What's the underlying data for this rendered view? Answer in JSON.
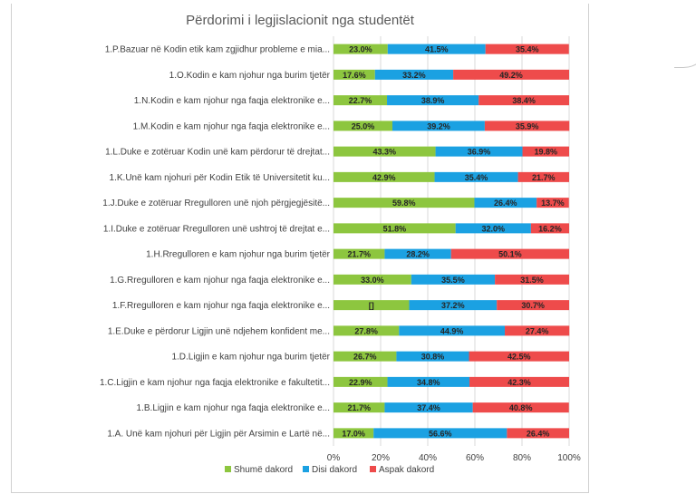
{
  "colors": {
    "shume": "#8dc63f",
    "disi": "#1ba1e2",
    "aspak": "#ee4b4b",
    "grid": "#d9d9d9"
  },
  "chart_data": {
    "type": "bar",
    "orientation": "horizontal",
    "stacked": true,
    "title": "Përdorimi i legjislacionit nga studentët",
    "xlim": [
      0,
      100
    ],
    "x_ticks": [
      "0%",
      "20%",
      "40%",
      "60%",
      "80%",
      "100%"
    ],
    "grid": true,
    "legend_position": "bottom",
    "categories": [
      "1.P.Bazuar në Kodin etik kam zgjidhur probleme e mia...",
      "1.O.Kodin e kam njohur nga burim tjetër",
      "1.N.Kodin e kam njohur nga faqja elektronike e...",
      "1.M.Kodin e kam njohur nga faqja elektronike e...",
      "1.L.Duke e zotëruar Kodin  unë kam përdorur të drejtat...",
      "1.K.Unë kam njohuri për Kodin Etik të Universitetit ku...",
      "1.J.Duke e zotëruar Rregulloren unë njoh përgjegjësitë...",
      "1.I.Duke e zotëruar Rregulloren unë ushtroj të drejtat e...",
      "1.H.Rregulloren e kam njohur nga burim tjetër",
      "1.G.Rregulloren e kam njohur nga faqja elektronike e...",
      "1.F.Rregulloren e kam njohur nga faqja elektronike e...",
      "1.E.Duke e përdorur Ligjin unë ndjehem konfident me...",
      "1.D.Ligjin e kam njohur nga burim tjetër",
      "1.C.Ligjin e kam njohur nga faqja elektronike e fakultetit...",
      "1.B.Ligjin e kam njohur nga faqja elektronike e...",
      "1.A. Unë kam njohuri për Ligjin për Arsimin e Lartë në..."
    ],
    "series": [
      {
        "name": "Shumë dakord",
        "values": [
          23.0,
          17.6,
          22.7,
          25.0,
          43.3,
          42.9,
          59.8,
          51.8,
          21.7,
          33.0,
          32.1,
          27.8,
          26.7,
          22.9,
          21.7,
          17.0
        ],
        "labels": [
          "23.0%",
          "17.6%",
          "22.7%",
          "25.0%",
          "43.3%",
          "42.9%",
          "59.8%",
          "51.8%",
          "21.7%",
          "33.0%",
          "[]",
          "27.8%",
          "26.7%",
          "22.9%",
          "21.7%",
          "17.0%"
        ]
      },
      {
        "name": "Disi dakord",
        "values": [
          41.5,
          33.2,
          38.9,
          39.2,
          36.9,
          35.4,
          26.4,
          32.0,
          28.2,
          35.5,
          37.2,
          44.9,
          30.8,
          34.8,
          37.4,
          56.6
        ],
        "labels": [
          "41.5%",
          "33.2%",
          "38.9%",
          "39.2%",
          "36.9%",
          "35.4%",
          "26.4%",
          "32.0%",
          "28.2%",
          "35.5%",
          "37.2%",
          "44.9%",
          "30.8%",
          "34.8%",
          "37.4%",
          "56.6%"
        ]
      },
      {
        "name": "Aspak dakord",
        "values": [
          35.4,
          49.2,
          38.4,
          35.9,
          19.8,
          21.7,
          13.7,
          16.2,
          50.1,
          31.5,
          30.7,
          27.4,
          42.5,
          42.3,
          40.8,
          26.4
        ],
        "labels": [
          "35.4%",
          "49.2%",
          "38.4%",
          "35.9%",
          "19.8%",
          "21.7%",
          "13.7%",
          "16.2%",
          "50.1%",
          "31.5%",
          "30.7%",
          "27.4%",
          "42.5%",
          "42.3%",
          "40.8%",
          "26.4%"
        ]
      }
    ]
  }
}
